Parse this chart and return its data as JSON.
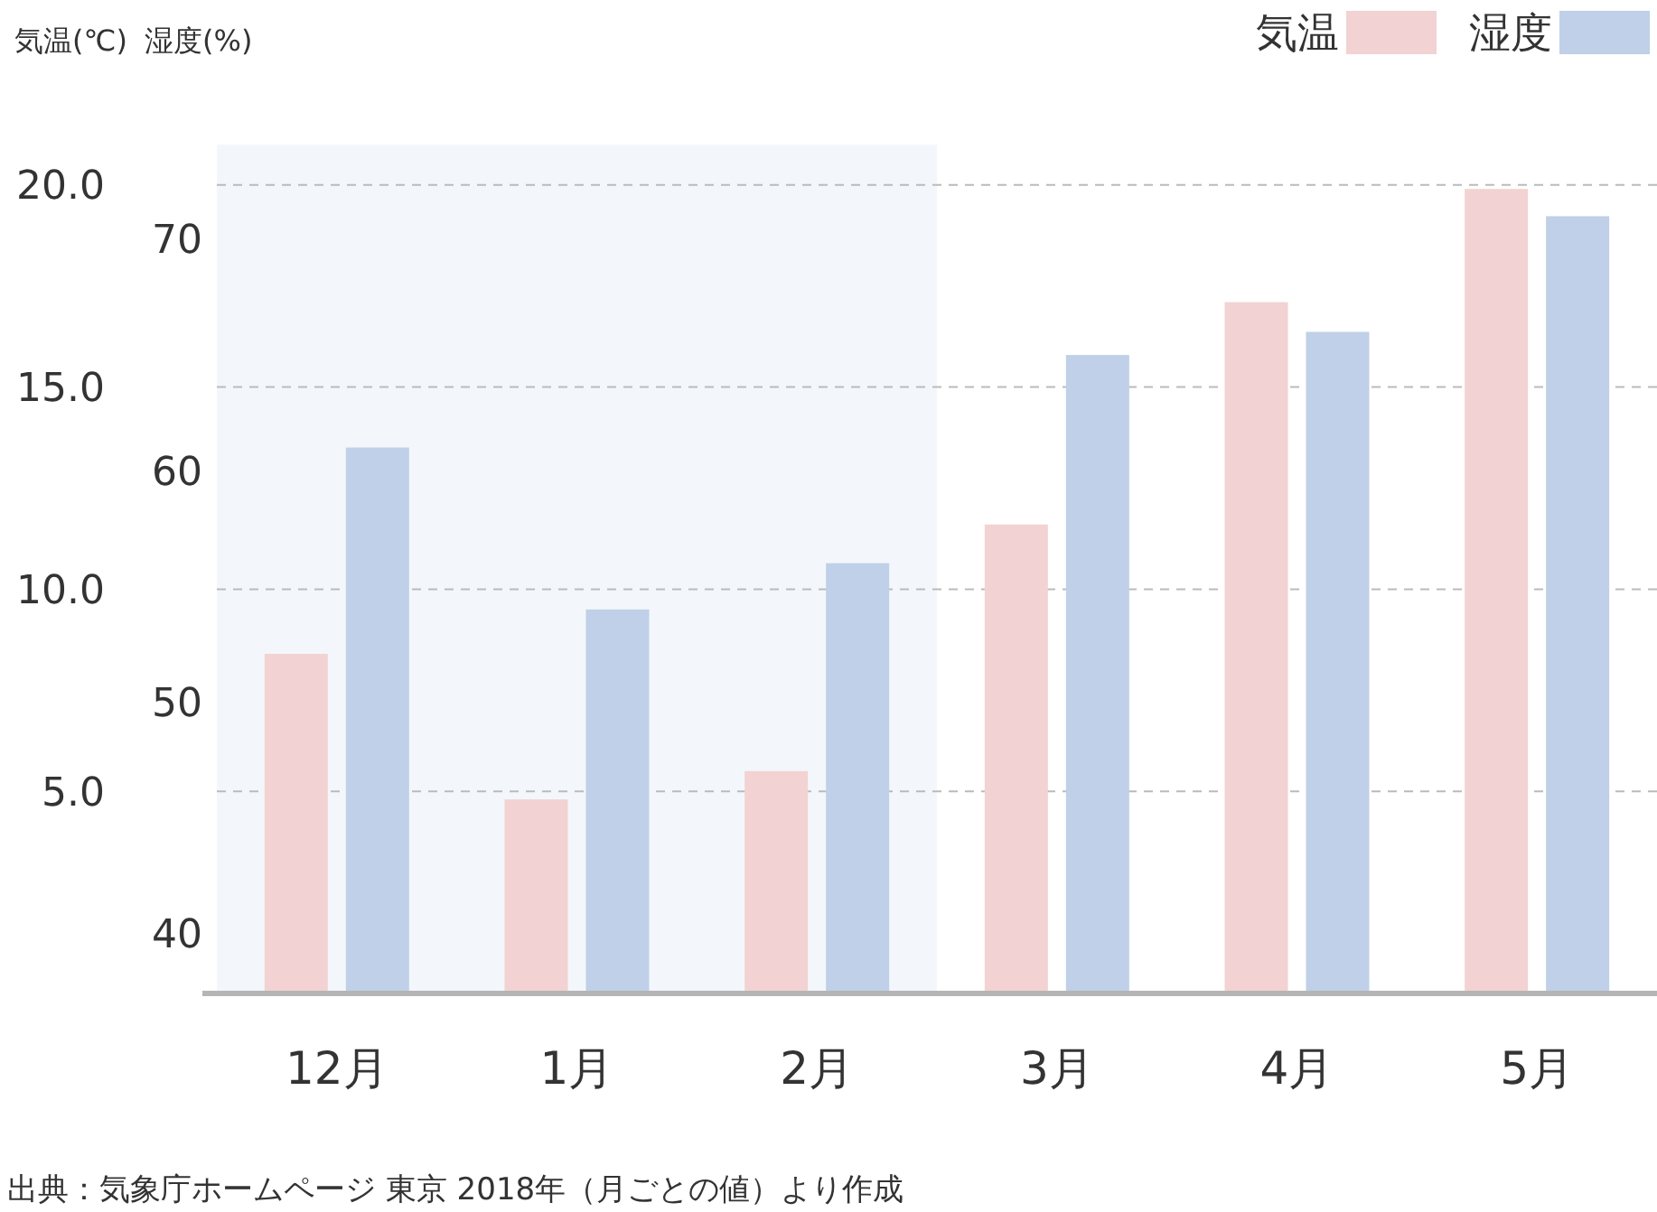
{
  "chart_data": {
    "type": "bar",
    "categories": [
      "12月",
      "1月",
      "2月",
      "3月",
      "4月",
      "5月"
    ],
    "series": [
      {
        "name": "気温",
        "color": "#f2d2d2",
        "values": [
          8.4,
          4.8,
          5.5,
          11.6,
          17.1,
          19.9
        ]
      },
      {
        "name": "湿度",
        "color": "#bfd0e8",
        "values": [
          61,
          54,
          56,
          65,
          66,
          71
        ],
        "axis": "y2"
      }
    ],
    "ylabel": "気温(℃)",
    "y2label": "湿度(%)",
    "ylim": [
      0,
      21
    ],
    "yticks": [
      {
        "value": 5,
        "label": "5.0"
      },
      {
        "value": 10,
        "label": "10.0"
      },
      {
        "value": 15,
        "label": "15.0"
      },
      {
        "value": 20,
        "label": "20.0"
      }
    ],
    "y2lim": [
      37.4,
      74.1
    ],
    "y2ticks": [
      40,
      50,
      60,
      70
    ],
    "grid": "y",
    "legend": "top right",
    "bands": [
      {
        "axis": "x",
        "from": "12月",
        "to": "2月",
        "color": "#f3f7fb"
      }
    ],
    "annotations": [
      "出典：気象庁ホームページ 東京 2018年（月ごとの値）より作成"
    ]
  }
}
